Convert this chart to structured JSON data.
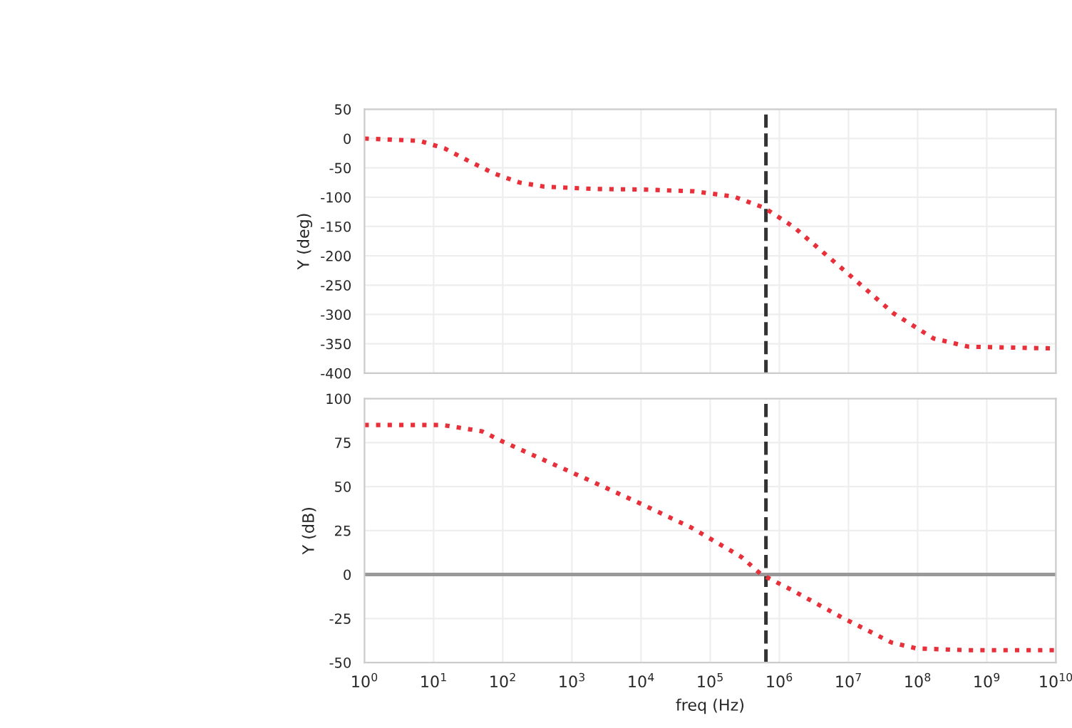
{
  "chart_data": [
    {
      "type": "line",
      "ylabel": "Y (deg)",
      "log": "x",
      "xlim": [
        1,
        10000000000
      ],
      "ylim": [
        -400,
        50
      ],
      "yticks": [
        50,
        0,
        -50,
        -100,
        -150,
        -200,
        -250,
        -300,
        -350,
        -400
      ],
      "tick_labels": "y",
      "grid": true,
      "line_style": "dotted",
      "series": [
        {
          "color": "#e8303a",
          "x": [
            1,
            6.3,
            14.5,
            33,
            76,
            174,
            398,
            2090,
            11000,
            59000,
            219000,
            603000,
            1620000,
            8510000,
            44700000,
            170000000,
            550000000,
            10000000000
          ],
          "values": [
            0,
            -4,
            -17,
            -39,
            -60,
            -75,
            -82,
            -86,
            -87,
            -90,
            -99,
            -118,
            -151,
            -224,
            -298,
            -341,
            -355,
            -358
          ]
        }
      ],
      "ref_lines": [
        {
          "axis": "x",
          "value": 640000,
          "color": "#333333",
          "line_style": "dashed"
        }
      ]
    },
    {
      "type": "line",
      "ylabel": "Y (dB)",
      "xlabel": "freq (Hz)",
      "log": "x",
      "xlim": [
        1,
        10000000000
      ],
      "xticks": [
        {
          "value": 1,
          "label": "10$^{0}$"
        },
        {
          "value": 10,
          "label": "10$^{1}$"
        },
        {
          "value": 100,
          "label": "10$^{2}$"
        },
        {
          "value": 1000,
          "label": "10$^{3}$"
        },
        {
          "value": 10000,
          "label": "10$^{4}$"
        },
        {
          "value": 100000,
          "label": "10$^{5}$"
        },
        {
          "value": 1000000,
          "label": "10$^{6}$"
        },
        {
          "value": 10000000,
          "label": "10$^{7}$"
        },
        {
          "value": 100000000,
          "label": "10$^{8}$"
        },
        {
          "value": 1000000000,
          "label": "10$^{9}$"
        },
        {
          "value": 10000000000,
          "label": "10$^{10}$"
        }
      ],
      "ylim": [
        -50,
        100
      ],
      "yticks": [
        100,
        75,
        50,
        25,
        0,
        -25,
        -50
      ],
      "grid": true,
      "line_style": "dotted",
      "series": [
        {
          "color": "#e8303a",
          "x": [
            1,
            13.2,
            50,
            98,
            363,
            1950,
            10200,
            53700,
            282000,
            550000,
            1480000,
            7940000,
            41700000,
            95500000,
            501000000,
            10000000000
          ],
          "values": [
            85,
            85,
            81.4,
            75.7,
            65.7,
            52.9,
            40,
            26.6,
            10,
            0,
            -8.6,
            -24.3,
            -38.6,
            -42,
            -43,
            -43
          ]
        }
      ],
      "ref_lines": [
        {
          "axis": "x",
          "value": 640000,
          "color": "#333333",
          "line_style": "dashed"
        },
        {
          "axis": "y",
          "value": 0,
          "color": "#999999",
          "line_style": "solid"
        }
      ]
    }
  ]
}
